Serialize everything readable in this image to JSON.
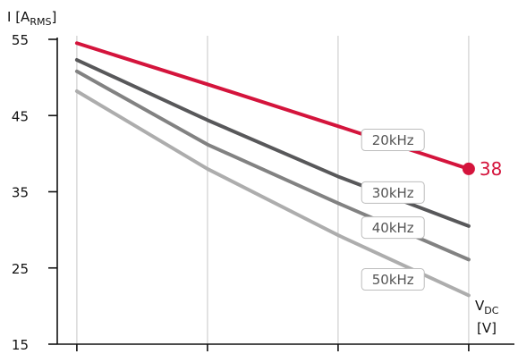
{
  "chart_data": {
    "type": "line",
    "y_axis": {
      "label_main": "I [A",
      "label_sub": "RMS",
      "label_close": "]",
      "ticks": [
        15,
        25,
        35,
        45,
        55
      ],
      "ylim": [
        15,
        55
      ]
    },
    "x_axis": {
      "label_main": "V",
      "label_sub": "DC",
      "label_unit": "[V]",
      "xlim": [
        -0.15,
        3.35
      ],
      "tick_positions": [
        0,
        1,
        2,
        3
      ],
      "tick_labels": [
        "",
        "",
        "",
        ""
      ]
    },
    "grid": "vertical",
    "series": [
      {
        "name": "20kHz",
        "color": "#d4143c",
        "x": [
          0,
          1,
          2,
          3
        ],
        "y": [
          54.5,
          49.1,
          43.6,
          38.0
        ],
        "label_x": 2.42,
        "label_y": 41.8
      },
      {
        "name": "30kHz",
        "color": "#58585a",
        "x": [
          0,
          1,
          2,
          3
        ],
        "y": [
          52.3,
          44.4,
          37.0,
          30.5
        ],
        "label_x": 2.42,
        "label_y": 34.9
      },
      {
        "name": "40kHz",
        "color": "#828282",
        "x": [
          0,
          1,
          2,
          3
        ],
        "y": [
          50.8,
          41.2,
          33.5,
          26.1
        ],
        "label_x": 2.42,
        "label_y": 30.3
      },
      {
        "name": "50kHz",
        "color": "#adadad",
        "x": [
          0,
          1,
          2,
          3
        ],
        "y": [
          48.2,
          38.0,
          29.3,
          21.4
        ],
        "label_x": 2.42,
        "label_y": 23.5
      }
    ],
    "end_marker": {
      "series": "20kHz",
      "x": 3,
      "y": 38.0,
      "label": "38",
      "color": "#d4143c"
    }
  }
}
